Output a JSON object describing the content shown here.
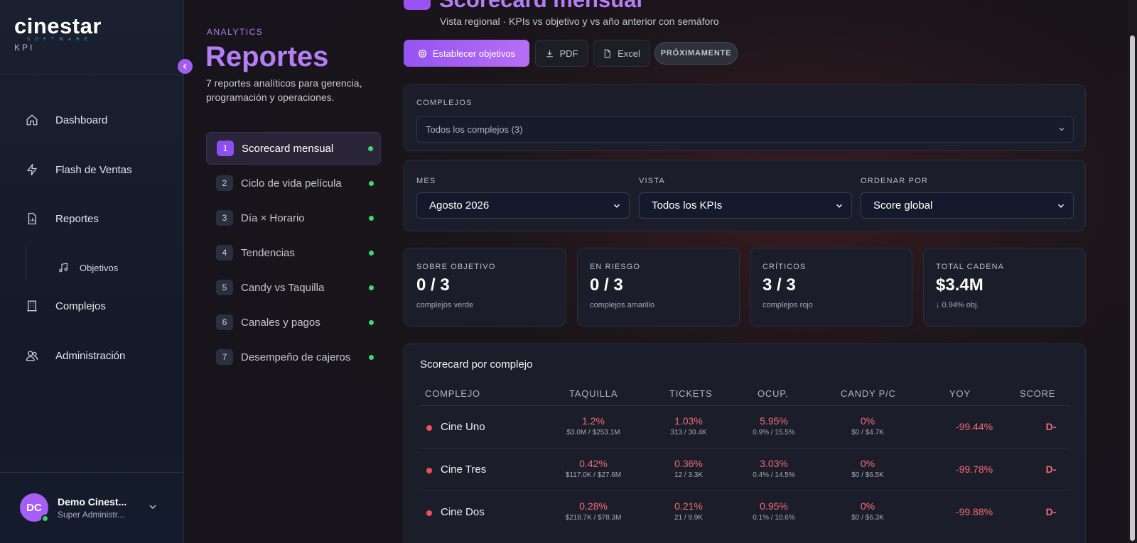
{
  "brand": {
    "logo_word": "cinestar",
    "logo_sub": "SOFTWARE",
    "logo_tag": "KPI"
  },
  "nav": {
    "items": [
      {
        "label": "Dashboard",
        "icon": "home-icon"
      },
      {
        "label": "Flash de Ventas",
        "icon": "bolt-icon"
      },
      {
        "label": "Reportes",
        "icon": "report-icon"
      },
      {
        "label": "Complejos",
        "icon": "building-icon"
      },
      {
        "label": "Administración",
        "icon": "users-icon"
      }
    ],
    "sub_item": {
      "label": "Objetivos",
      "icon": "music-note-icon"
    }
  },
  "user": {
    "initials": "DC",
    "name": "Demo Cinest...",
    "role": "Super Administr..."
  },
  "reports": {
    "eyebrow": "ANALYTICS",
    "title": "Reportes",
    "description": "7 reportes analíticos para gerencia, programación y operaciones.",
    "items": [
      {
        "num": "1",
        "label": "Scorecard mensual",
        "active": true
      },
      {
        "num": "2",
        "label": "Ciclo de vida película"
      },
      {
        "num": "3",
        "label": "Día × Horario"
      },
      {
        "num": "4",
        "label": "Tendencias"
      },
      {
        "num": "5",
        "label": "Candy vs Taquilla"
      },
      {
        "num": "6",
        "label": "Canales y pagos"
      },
      {
        "num": "7",
        "label": "Desempeño de cajeros"
      }
    ]
  },
  "header": {
    "title": "Scorecard mensual",
    "subtitle": "Vista regional · KPIs vs objetivo y vs año anterior con semáforo"
  },
  "toolbar": {
    "set_goals": "Establecer objetivos",
    "pdf": "PDF",
    "excel": "Excel",
    "coming_soon": "PRÓXIMAMENTE"
  },
  "filters": {
    "complejos_label": "COMPLEJOS",
    "complejos_value": "Todos los complejos (3)",
    "mes_label": "MES",
    "mes_value": "Agosto 2026",
    "vista_label": "VISTA",
    "vista_value": "Todos los KPIs",
    "ordenar_label": "ORDENAR POR",
    "ordenar_value": "Score global"
  },
  "kpis": [
    {
      "label": "SOBRE OBJETIVO",
      "value": "0 / 3",
      "sub": "complejos verde"
    },
    {
      "label": "EN RIESGO",
      "value": "0 / 3",
      "sub": "complejos amarillo"
    },
    {
      "label": "CRÍTICOS",
      "value": "3 / 3",
      "sub": "complejos rojo"
    },
    {
      "label": "TOTAL CADENA",
      "value": "$3.4M",
      "sub": "↓ 0.94% obj."
    }
  ],
  "table": {
    "title": "Scorecard por complejo",
    "headers": [
      "COMPLEJO",
      "TAQUILLA",
      "TICKETS",
      "OCUP.",
      "CANDY P/C",
      "YOY",
      "SCORE"
    ],
    "rows": [
      {
        "name": "Cine Uno",
        "taquilla": "1.2%",
        "taquilla_sub": "$3.0M / $253.1M",
        "tickets": "1.03%",
        "tickets_sub": "313 / 30.4K",
        "ocup": "5.95%",
        "ocup_sub": "0.9% / 15.5%",
        "candy": "0%",
        "candy_sub": "$0 / $4.7K",
        "yoy": "-99.44%",
        "score": "D-"
      },
      {
        "name": "Cine Tres",
        "taquilla": "0.42%",
        "taquilla_sub": "$117.0K / $27.6M",
        "tickets": "0.36%",
        "tickets_sub": "12 / 3.3K",
        "ocup": "3.03%",
        "ocup_sub": "0.4% / 14.5%",
        "candy": "0%",
        "candy_sub": "$0 / $6.5K",
        "yoy": "-99.78%",
        "score": "D-"
      },
      {
        "name": "Cine Dos",
        "taquilla": "0.28%",
        "taquilla_sub": "$218.7K / $78.3M",
        "tickets": "0.21%",
        "tickets_sub": "21 / 9.9K",
        "ocup": "0.95%",
        "ocup_sub": "0.1% / 10.6%",
        "candy": "0%",
        "candy_sub": "$0 / $6.3K",
        "yoy": "-99.88%",
        "score": "D-"
      }
    ]
  },
  "colors": {
    "accent": "#a25cf0",
    "critical": "#f04f58",
    "ok": "#3ddb6a"
  }
}
